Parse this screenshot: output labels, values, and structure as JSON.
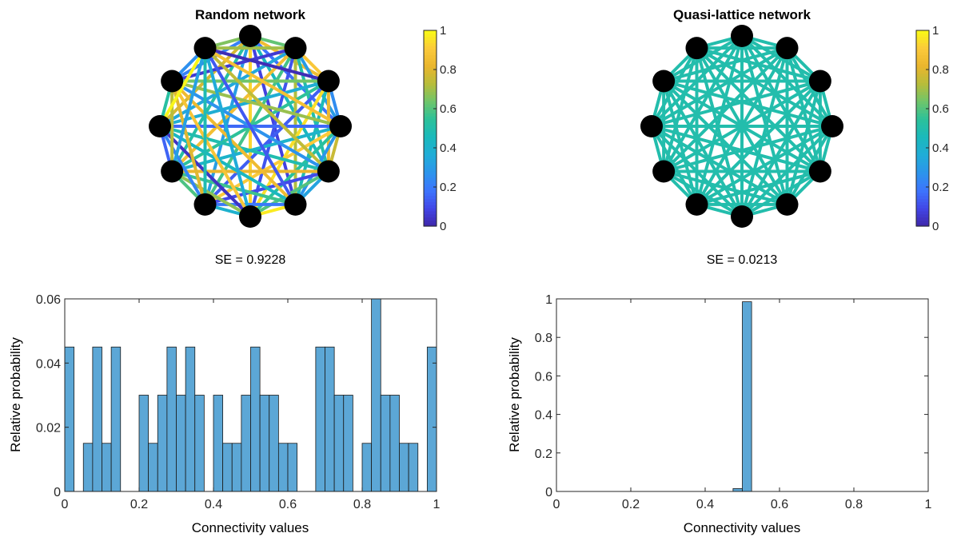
{
  "colormap": [
    "#3e26a8",
    "#4245e6",
    "#3d74fd",
    "#2c94ec",
    "#20acd8",
    "#1ab9bc",
    "#2bc19b",
    "#6ec56b",
    "#b7bd3b",
    "#eab62e",
    "#fbc93a",
    "#f9fb15"
  ],
  "node_color": "#000000",
  "bar_color": "#5ca7d6",
  "chart_data": [
    {
      "type": "network",
      "title": "Random network",
      "caption": "SE = 0.9228",
      "nodes": 12,
      "colorbar": {
        "limits": [
          0,
          1
        ],
        "ticks": [
          "0",
          "0.2",
          "0.4",
          "0.6",
          "0.8",
          "1"
        ]
      },
      "edge_weights": [
        0.62,
        0.85,
        0.18,
        0.45,
        0.08,
        0.93,
        0.31,
        0.52,
        0.78,
        0.22,
        0.66,
        0.9,
        0.3,
        0.51,
        0.72,
        0.12,
        0.58,
        0.86,
        0.35,
        0.06,
        0.7,
        0.25,
        0.83,
        0.47,
        0.95,
        0.14,
        0.55,
        0.38,
        0.64,
        0.02,
        0.76,
        0.28,
        0.54,
        0.91,
        0.41,
        0.16,
        0.69,
        0.87,
        0.33,
        0.6,
        0.1,
        0.82,
        0.49,
        0.27,
        0.74,
        0.97,
        0.2,
        0.57,
        0.44,
        0.84,
        0.13,
        0.4,
        0.68,
        0.04,
        0.89,
        0.36,
        0.59,
        0.23,
        0.8,
        0.48,
        0.15,
        0.73,
        0.32,
        0.53,
        0.99,
        0.26
      ]
    },
    {
      "type": "network",
      "title": "Quasi-lattice network",
      "caption": "SE = 0.0213",
      "nodes": 12,
      "colorbar": {
        "limits": [
          0,
          1
        ],
        "ticks": [
          "0",
          "0.2",
          "0.4",
          "0.6",
          "0.8",
          "1"
        ]
      },
      "edge_value": 0.5
    },
    {
      "type": "bar",
      "histogram": true,
      "xlabel": "Connectivity values",
      "ylabel": "Relative probability",
      "xlim": [
        0,
        1
      ],
      "ylim": [
        0,
        0.06
      ],
      "xticks": [
        "0",
        "0.2",
        "0.4",
        "0.6",
        "0.8",
        "1"
      ],
      "yticks": [
        "0",
        "0.02",
        "0.04",
        "0.06"
      ],
      "bin_width": 0.025,
      "values": [
        0.045,
        0,
        0.015,
        0.045,
        0.015,
        0.045,
        0,
        0,
        0.03,
        0.015,
        0.03,
        0.045,
        0.03,
        0.045,
        0.03,
        0,
        0.03,
        0.015,
        0.015,
        0.03,
        0.045,
        0.03,
        0.03,
        0.015,
        0.015,
        0,
        0,
        0.045,
        0.045,
        0.03,
        0.03,
        0,
        0.015,
        0.06,
        0.03,
        0.03,
        0.015,
        0.015,
        0,
        0.045
      ]
    },
    {
      "type": "bar",
      "histogram": true,
      "xlabel": "Connectivity values",
      "ylabel": "Relative probability",
      "xlim": [
        0,
        1
      ],
      "ylim": [
        0,
        1
      ],
      "xticks": [
        "0",
        "0.2",
        "0.4",
        "0.6",
        "0.8",
        "1"
      ],
      "yticks": [
        "0",
        "0.2",
        "0.4",
        "0.6",
        "0.8",
        "1"
      ],
      "bars": [
        {
          "x0": 0.475,
          "x1": 0.5,
          "value": 0.015
        },
        {
          "x0": 0.5,
          "x1": 0.525,
          "value": 0.985
        }
      ]
    }
  ]
}
